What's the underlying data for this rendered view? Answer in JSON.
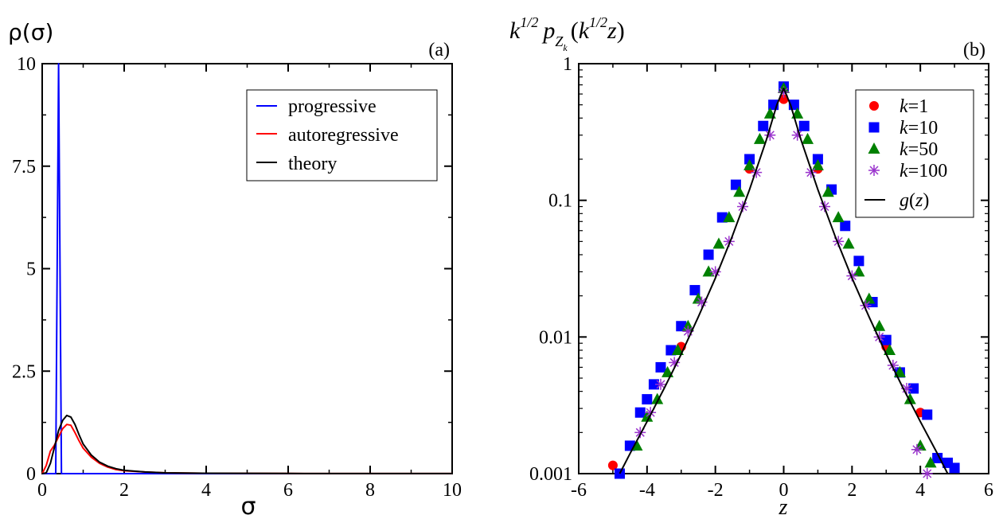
{
  "chart_data": [
    {
      "id": "a",
      "type": "line",
      "panel_label": "(a)",
      "ylabel": "ρ(σ)",
      "xlabel": "σ",
      "xlim": [
        0,
        10
      ],
      "ylim": [
        0,
        10
      ],
      "x_ticks": [
        0,
        2,
        4,
        6,
        8,
        10
      ],
      "y_ticks": [
        0,
        2.5,
        5,
        7.5,
        10
      ],
      "x_tick_labels": [
        "0",
        "2",
        "4",
        "6",
        "8",
        "10"
      ],
      "y_tick_labels": [
        "0",
        "2.5",
        "5",
        "7.5",
        "10"
      ],
      "legend": {
        "position": "top-right"
      },
      "series": [
        {
          "name": "progressive",
          "color": "#0000ff",
          "x": [
            0.0,
            0.33,
            0.4,
            0.47,
            0.55,
            1.0,
            10.0
          ],
          "y": [
            0,
            0,
            10,
            0,
            0,
            0,
            0
          ]
        },
        {
          "name": "autoregressive",
          "color": "#ff0000",
          "x": [
            0.0,
            0.1,
            0.2,
            0.3,
            0.4,
            0.5,
            0.6,
            0.7,
            0.8,
            0.9,
            1.0,
            1.2,
            1.4,
            1.6,
            1.8,
            2.0,
            2.5,
            3.0,
            4.0,
            6.0,
            8.0,
            10.0
          ],
          "y": [
            0.0,
            0.2,
            0.55,
            0.7,
            0.9,
            1.1,
            1.2,
            1.18,
            1.0,
            0.8,
            0.62,
            0.4,
            0.25,
            0.16,
            0.1,
            0.07,
            0.04,
            0.02,
            0.01,
            0.004,
            0.002,
            0.001
          ]
        },
        {
          "name": "theory",
          "color": "#000000",
          "x": [
            0.0,
            0.1,
            0.2,
            0.3,
            0.4,
            0.5,
            0.6,
            0.7,
            0.8,
            0.9,
            1.0,
            1.2,
            1.4,
            1.6,
            1.8,
            2.0,
            2.5,
            3.0,
            4.0,
            6.0,
            8.0,
            10.0
          ],
          "y": [
            0.0,
            0.02,
            0.25,
            0.65,
            1.05,
            1.3,
            1.42,
            1.38,
            1.2,
            0.95,
            0.72,
            0.45,
            0.28,
            0.18,
            0.12,
            0.08,
            0.04,
            0.02,
            0.01,
            0.004,
            0.002,
            0.001
          ]
        }
      ]
    },
    {
      "id": "b",
      "type": "scatter",
      "panel_label": "(b)",
      "ylabel": "k^1/2 p_Zk(k^1/2 z)",
      "xlabel": "z",
      "xlim": [
        -6,
        6
      ],
      "ylim": [
        0.001,
        1
      ],
      "yscale": "log",
      "x_ticks": [
        -6,
        -4,
        -2,
        0,
        2,
        4,
        6
      ],
      "y_ticks": [
        0.001,
        0.01,
        0.1,
        1
      ],
      "x_tick_labels": [
        "-6",
        "-4",
        "-2",
        "0",
        "2",
        "4",
        "6"
      ],
      "y_tick_labels": [
        "0.001",
        "0.01",
        "0.1",
        "1"
      ],
      "legend": {
        "position": "top-right"
      },
      "series": [
        {
          "name": "k=1",
          "marker": "circle",
          "color": "#ff0000",
          "x": [
            -5.0,
            -3.0,
            -1.0,
            0.0,
            1.0,
            3.0,
            4.0
          ],
          "y": [
            0.00115,
            0.0085,
            0.17,
            0.55,
            0.17,
            0.0085,
            0.0028
          ]
        },
        {
          "name": "k=10",
          "marker": "square",
          "color": "#0000ff",
          "x": [
            -4.8,
            -4.5,
            -4.2,
            -4.0,
            -3.8,
            -3.6,
            -3.3,
            -3.0,
            -2.6,
            -2.2,
            -1.8,
            -1.4,
            -1.0,
            -0.6,
            -0.3,
            0.0,
            0.3,
            0.6,
            1.0,
            1.4,
            1.8,
            2.2,
            2.6,
            3.0,
            3.4,
            3.8,
            4.2,
            4.5,
            4.8,
            5.0
          ],
          "y": [
            0.001,
            0.0016,
            0.0028,
            0.0035,
            0.0045,
            0.006,
            0.008,
            0.012,
            0.022,
            0.04,
            0.075,
            0.13,
            0.2,
            0.35,
            0.5,
            0.68,
            0.5,
            0.35,
            0.2,
            0.12,
            0.065,
            0.036,
            0.018,
            0.0095,
            0.0055,
            0.0042,
            0.0027,
            0.0013,
            0.0012,
            0.0011
          ]
        },
        {
          "name": "k=50",
          "marker": "triangle",
          "color": "#008000",
          "x": [
            -4.3,
            -4.0,
            -3.7,
            -3.4,
            -3.1,
            -2.8,
            -2.5,
            -2.2,
            -1.9,
            -1.6,
            -1.3,
            -1.0,
            -0.7,
            -0.4,
            0.0,
            0.4,
            0.7,
            1.0,
            1.3,
            1.6,
            1.9,
            2.2,
            2.5,
            2.8,
            3.1,
            3.4,
            3.7,
            4.0,
            4.3
          ],
          "y": [
            0.0016,
            0.0026,
            0.0035,
            0.0055,
            0.008,
            0.012,
            0.019,
            0.03,
            0.048,
            0.075,
            0.115,
            0.18,
            0.28,
            0.43,
            0.66,
            0.43,
            0.28,
            0.18,
            0.115,
            0.075,
            0.048,
            0.03,
            0.019,
            0.012,
            0.008,
            0.0055,
            0.0035,
            0.0016,
            0.0012
          ]
        },
        {
          "name": "k=100",
          "marker": "star",
          "color": "#9932cc",
          "x": [
            -4.2,
            -3.9,
            -3.6,
            -3.2,
            -2.8,
            -2.4,
            -2.0,
            -1.6,
            -1.2,
            -0.8,
            -0.4,
            0.0,
            0.4,
            0.8,
            1.2,
            1.6,
            2.0,
            2.4,
            2.8,
            3.2,
            3.6,
            3.9,
            4.2
          ],
          "y": [
            0.002,
            0.0028,
            0.0045,
            0.0065,
            0.011,
            0.018,
            0.03,
            0.05,
            0.09,
            0.16,
            0.3,
            0.62,
            0.3,
            0.16,
            0.09,
            0.05,
            0.028,
            0.017,
            0.01,
            0.0062,
            0.0042,
            0.0015,
            0.001
          ]
        },
        {
          "name": "g(z)",
          "marker": "line",
          "color": "#000000",
          "x": [
            -4.8,
            -4.5,
            -4.0,
            -3.5,
            -3.0,
            -2.5,
            -2.0,
            -1.5,
            -1.0,
            -0.5,
            -0.2,
            0.0,
            0.2,
            0.5,
            1.0,
            1.5,
            2.0,
            2.5,
            3.0,
            3.5,
            4.0,
            4.5,
            4.8
          ],
          "y": [
            0.001,
            0.0014,
            0.0024,
            0.0042,
            0.0075,
            0.014,
            0.027,
            0.055,
            0.12,
            0.28,
            0.5,
            0.66,
            0.5,
            0.28,
            0.12,
            0.055,
            0.027,
            0.014,
            0.0075,
            0.0042,
            0.0024,
            0.0014,
            0.001
          ]
        }
      ]
    }
  ]
}
